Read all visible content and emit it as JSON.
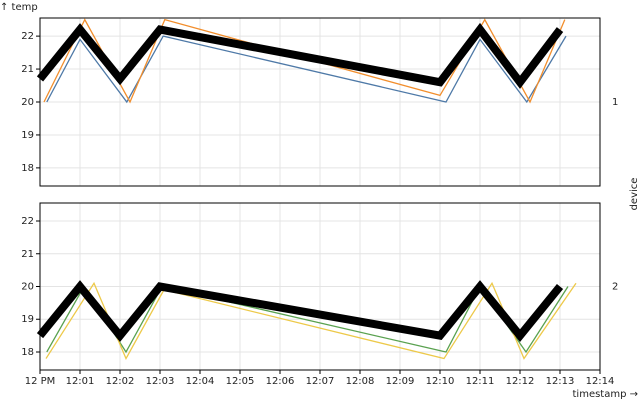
{
  "chart_data": {
    "type": "line",
    "y_label": "↑ temp",
    "x_label": "timestamp →",
    "facet_label": "device",
    "xlim": [
      0,
      14
    ],
    "xticks": [
      {
        "value": 0,
        "label": "12 PM"
      },
      {
        "value": 1,
        "label": "12:01"
      },
      {
        "value": 2,
        "label": "12:02"
      },
      {
        "value": 3,
        "label": "12:03"
      },
      {
        "value": 4,
        "label": "12:04"
      },
      {
        "value": 5,
        "label": "12:05"
      },
      {
        "value": 6,
        "label": "12:06"
      },
      {
        "value": 7,
        "label": "12:07"
      },
      {
        "value": 8,
        "label": "12:08"
      },
      {
        "value": 9,
        "label": "12:09"
      },
      {
        "value": 10,
        "label": "12:10"
      },
      {
        "value": 11,
        "label": "12:11"
      },
      {
        "value": 12,
        "label": "12:12"
      },
      {
        "value": 13,
        "label": "12:13"
      },
      {
        "value": 14,
        "label": "12:14"
      }
    ],
    "grid": true,
    "facets": [
      {
        "name": "1",
        "ylim": [
          17.45,
          22.55
        ],
        "yticks": [
          18,
          19,
          20,
          21,
          22
        ],
        "series": [
          {
            "color": "#4e79a7",
            "width": 1.3,
            "x": [
              0.17,
              1,
              2.17,
              3.08,
              10.15,
              11,
              12.17,
              13.15
            ],
            "values": [
              20,
              21.9,
              20,
              22,
              20,
              21.9,
              20,
              22
            ]
          },
          {
            "color": "#f28e2c",
            "width": 1.3,
            "x": [
              0.1,
              1.12,
              2.25,
              3.12,
              10,
              11.12,
              12.25,
              13.12
            ],
            "values": [
              20,
              22.5,
              20,
              22.5,
              20.2,
              22.5,
              20,
              22.5
            ]
          },
          {
            "color": "#000000",
            "width": 8,
            "x": [
              0,
              1,
              2,
              3,
              10,
              11,
              12,
              13
            ],
            "values": [
              20.7,
              22.2,
              20.7,
              22.2,
              20.6,
              22.2,
              20.6,
              22.2
            ]
          }
        ]
      },
      {
        "name": "2",
        "ylim": [
          17.45,
          22.55
        ],
        "yticks": [
          18,
          19,
          20,
          21,
          22
        ],
        "series": [
          {
            "color": "#59a14f",
            "width": 1.3,
            "x": [
              0.17,
              1.1,
              2.15,
              3.05,
              10.15,
              11,
              12.15,
              13.2
            ],
            "values": [
              18,
              20,
              18,
              20,
              18,
              20,
              18,
              20
            ]
          },
          {
            "color": "#edc949",
            "width": 1.3,
            "x": [
              0.15,
              1.35,
              2.15,
              3.1,
              10.1,
              11.3,
              12.1,
              13.4
            ],
            "values": [
              17.8,
              20.1,
              17.8,
              19.9,
              17.8,
              20.1,
              17.8,
              20.1
            ]
          },
          {
            "color": "#000000",
            "width": 8,
            "x": [
              0,
              1,
              2,
              3,
              10,
              11,
              12,
              13
            ],
            "values": [
              18.5,
              20,
              18.5,
              20,
              18.5,
              20,
              18.5,
              20
            ]
          }
        ]
      }
    ]
  }
}
